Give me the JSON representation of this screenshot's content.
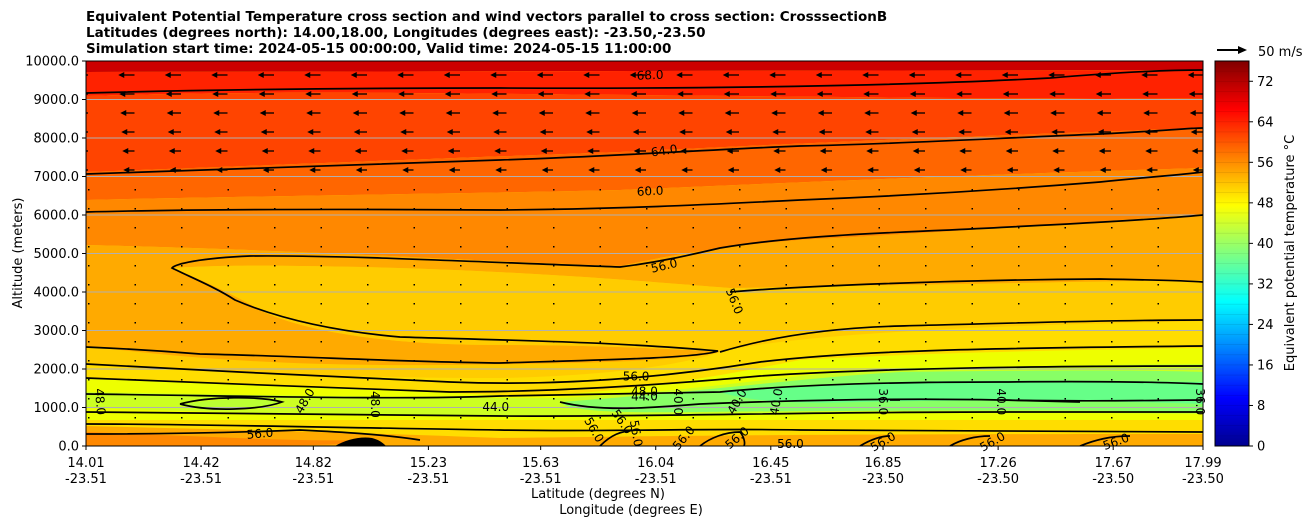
{
  "chart_data": {
    "type": "heatmap",
    "title_lines": [
      "Equivalent Potential Temperature cross section and wind vectors parallel to cross section: CrosssectionB",
      "Latitudes (degrees north): 14.00,18.00, Longitudes (degrees east): -23.50,-23.50",
      "Simulation start time: 2024-05-15 00:00:00, Valid time: 2024-05-15 11:00:00"
    ],
    "ylabel": "Altitude (meters)",
    "xlabel": "Latitude (degrees N)",
    "xlabel2": "Longitude (degrees E)",
    "ylim": [
      0,
      10000
    ],
    "xlim": [
      14.01,
      17.99
    ],
    "yticks": [
      "0.0",
      "1000.0",
      "2000.0",
      "3000.0",
      "4000.0",
      "5000.0",
      "6000.0",
      "7000.0",
      "8000.0",
      "9000.0",
      "10000.0"
    ],
    "xticks": [
      {
        "x": 14.01,
        "lat": "14.01",
        "lon": "-23.51"
      },
      {
        "x": 14.42,
        "lat": "14.42",
        "lon": "-23.51"
      },
      {
        "x": 14.82,
        "lat": "14.82",
        "lon": "-23.51"
      },
      {
        "x": 15.23,
        "lat": "15.23",
        "lon": "-23.51"
      },
      {
        "x": 15.63,
        "lat": "15.63",
        "lon": "-23.51"
      },
      {
        "x": 16.04,
        "lat": "16.04",
        "lon": "-23.51"
      },
      {
        "x": 16.45,
        "lat": "16.45",
        "lon": "-23.51"
      },
      {
        "x": 16.85,
        "lat": "16.85",
        "lon": "-23.50"
      },
      {
        "x": 17.26,
        "lat": "17.26",
        "lon": "-23.50"
      },
      {
        "x": 17.67,
        "lat": "17.67",
        "lon": "-23.50"
      },
      {
        "x": 17.99,
        "lat": "17.99",
        "lon": "-23.50"
      }
    ],
    "grid": "horizontal",
    "colorbar": {
      "label": "Equivalent potential temperature °C",
      "range": [
        0,
        76
      ],
      "ticks": [
        "0",
        "8",
        "16",
        "24",
        "32",
        "40",
        "48",
        "56",
        "64",
        "72"
      ],
      "colormap": "jet"
    },
    "quiver_key": "50 m/s",
    "contour_labels": [
      {
        "text": "68.0",
        "x": 16.02,
        "y": 9630,
        "rot": -2
      },
      {
        "text": "64.0",
        "x": 16.07,
        "y": 7670,
        "rot": -8
      },
      {
        "text": "60.0",
        "x": 16.02,
        "y": 6620,
        "rot": -3
      },
      {
        "text": "56.0",
        "x": 16.07,
        "y": 4680,
        "rot": -13
      },
      {
        "text": "56.0",
        "x": 16.32,
        "y": 3760,
        "rot": 68
      },
      {
        "text": "56.0",
        "x": 15.97,
        "y": 1810,
        "rot": 0
      },
      {
        "text": "48.0",
        "x": 16.0,
        "y": 1420,
        "rot": 0
      },
      {
        "text": "44.0",
        "x": 16.0,
        "y": 1280,
        "rot": 0
      },
      {
        "text": "44.0",
        "x": 15.47,
        "y": 1010,
        "rot": 0
      },
      {
        "text": "48.0",
        "x": 14.06,
        "y": 1150,
        "rot": 85
      },
      {
        "text": "48.0",
        "x": 14.79,
        "y": 1170,
        "rot": -60
      },
      {
        "text": "48.0",
        "x": 15.04,
        "y": 1080,
        "rot": 90
      },
      {
        "text": "56.0",
        "x": 14.63,
        "y": 320,
        "rot": -5
      },
      {
        "text": "56.0",
        "x": 15.82,
        "y": 420,
        "rot": 60
      },
      {
        "text": "56.0",
        "x": 15.92,
        "y": 630,
        "rot": 55
      },
      {
        "text": "56.0",
        "x": 15.97,
        "y": 330,
        "rot": 80
      },
      {
        "text": "40.0",
        "x": 16.12,
        "y": 1150,
        "rot": 90
      },
      {
        "text": "56.0",
        "x": 16.14,
        "y": 210,
        "rot": -50
      },
      {
        "text": "40.0",
        "x": 16.33,
        "y": 1150,
        "rot": -60
      },
      {
        "text": "56.0",
        "x": 16.33,
        "y": 210,
        "rot": -40
      },
      {
        "text": "40.0",
        "x": 16.47,
        "y": 1150,
        "rot": -80
      },
      {
        "text": "56.0",
        "x": 16.52,
        "y": 50,
        "rot": 0
      },
      {
        "text": "36.0",
        "x": 16.85,
        "y": 1150,
        "rot": 90
      },
      {
        "text": "56.0",
        "x": 16.85,
        "y": 110,
        "rot": -30
      },
      {
        "text": "40.0",
        "x": 17.27,
        "y": 1150,
        "rot": 90
      },
      {
        "text": "56.0",
        "x": 17.24,
        "y": 110,
        "rot": -30
      },
      {
        "text": "56.0",
        "x": 17.68,
        "y": 110,
        "rot": -20
      },
      {
        "text": "36.0",
        "x": 17.98,
        "y": 1150,
        "rot": 90
      }
    ]
  }
}
